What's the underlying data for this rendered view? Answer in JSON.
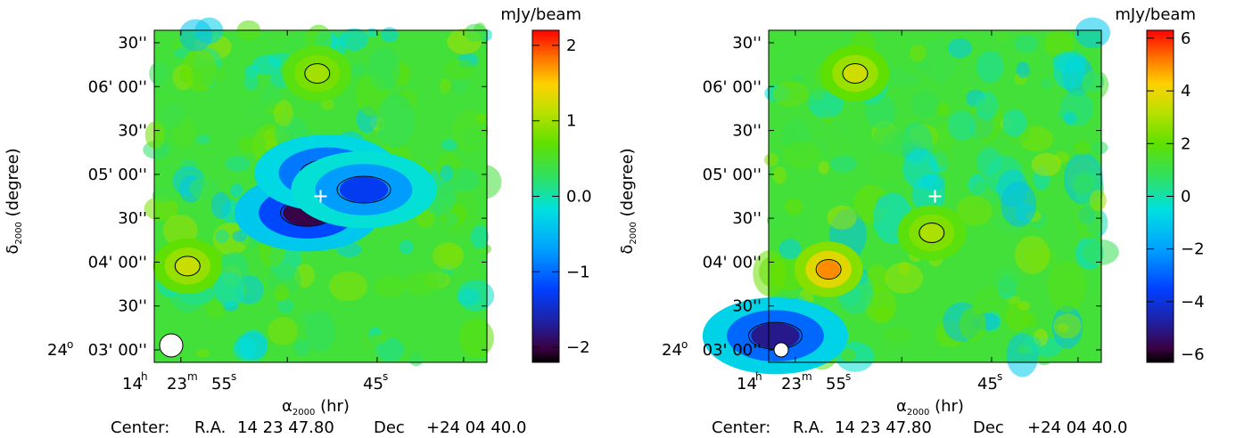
{
  "footer": {
    "center_label": "Center:",
    "ra_label": "R.A.",
    "ra_value": "14 23 47.80",
    "dec_label": "Dec",
    "dec_value": "+24 04 40.0"
  },
  "axes": {
    "y_title": "(degree)",
    "y_symbol": "δ",
    "y_sub": "2000",
    "x_title": "(hr)",
    "x_symbol": "α",
    "x_sub": "2000"
  },
  "colorbar_unit": "mJy/beam",
  "chart_data": [
    {
      "type": "heatmap",
      "panel": "left",
      "colorbar_label": "mJy/beam",
      "colorbar_range": [
        -2.2,
        2.2
      ],
      "colorbar_ticks": [
        2,
        1,
        0.0,
        -1,
        -2
      ],
      "colorbar_tick_labels": [
        "2",
        "1",
        "0.0",
        "−1",
        "−2"
      ],
      "yticks": [
        "30''",
        "06' 00''",
        "30''",
        "05' 00''",
        "30''",
        "04' 00''",
        "30''",
        "03' 00''"
      ],
      "ydeg_label": "24",
      "xticks": {
        "h": "14",
        "m": "23",
        "s1": "55",
        "s2": "45"
      },
      "marker": "cross",
      "beam": "circle-large",
      "features": [
        {
          "kind": "negative-blob",
          "value": -2.0,
          "cx": 0.46,
          "cy": 0.55
        },
        {
          "kind": "negative-blob",
          "value": -1.6,
          "cx": 0.52,
          "cy": 0.43
        },
        {
          "kind": "negative-blob",
          "value": -1.3,
          "cx": 0.63,
          "cy": 0.48
        },
        {
          "kind": "positive-blob",
          "value": 1.2,
          "cx": 0.1,
          "cy": 0.71
        },
        {
          "kind": "positive-blob",
          "value": 1.0,
          "cx": 0.49,
          "cy": 0.13
        }
      ]
    },
    {
      "type": "heatmap",
      "panel": "right",
      "colorbar_label": "mJy/beam",
      "colorbar_range": [
        -6.3,
        6.3
      ],
      "colorbar_ticks": [
        6,
        4,
        2,
        0,
        -2,
        -4,
        -6
      ],
      "colorbar_tick_labels": [
        "6",
        "4",
        "2",
        "0",
        "−2",
        "−4",
        "−6"
      ],
      "yticks": [
        "30''",
        "06' 00''",
        "30''",
        "05' 00''",
        "30''",
        "04' 00''",
        "30''",
        "03' 00''"
      ],
      "ydeg_label": "24",
      "xticks": {
        "h": "14",
        "m": "23",
        "s1": "55",
        "s2": "45"
      },
      "marker": "cross",
      "beam": "circle-small",
      "features": [
        {
          "kind": "positive-blob",
          "value": 5.0,
          "cx": 0.18,
          "cy": 0.72
        },
        {
          "kind": "positive-blob",
          "value": 3.5,
          "cx": 0.26,
          "cy": 0.13
        },
        {
          "kind": "positive-blob",
          "value": 3.0,
          "cx": 0.49,
          "cy": 0.61
        },
        {
          "kind": "negative-blob",
          "value": -5.0,
          "cx": 0.02,
          "cy": 0.92
        }
      ]
    }
  ]
}
